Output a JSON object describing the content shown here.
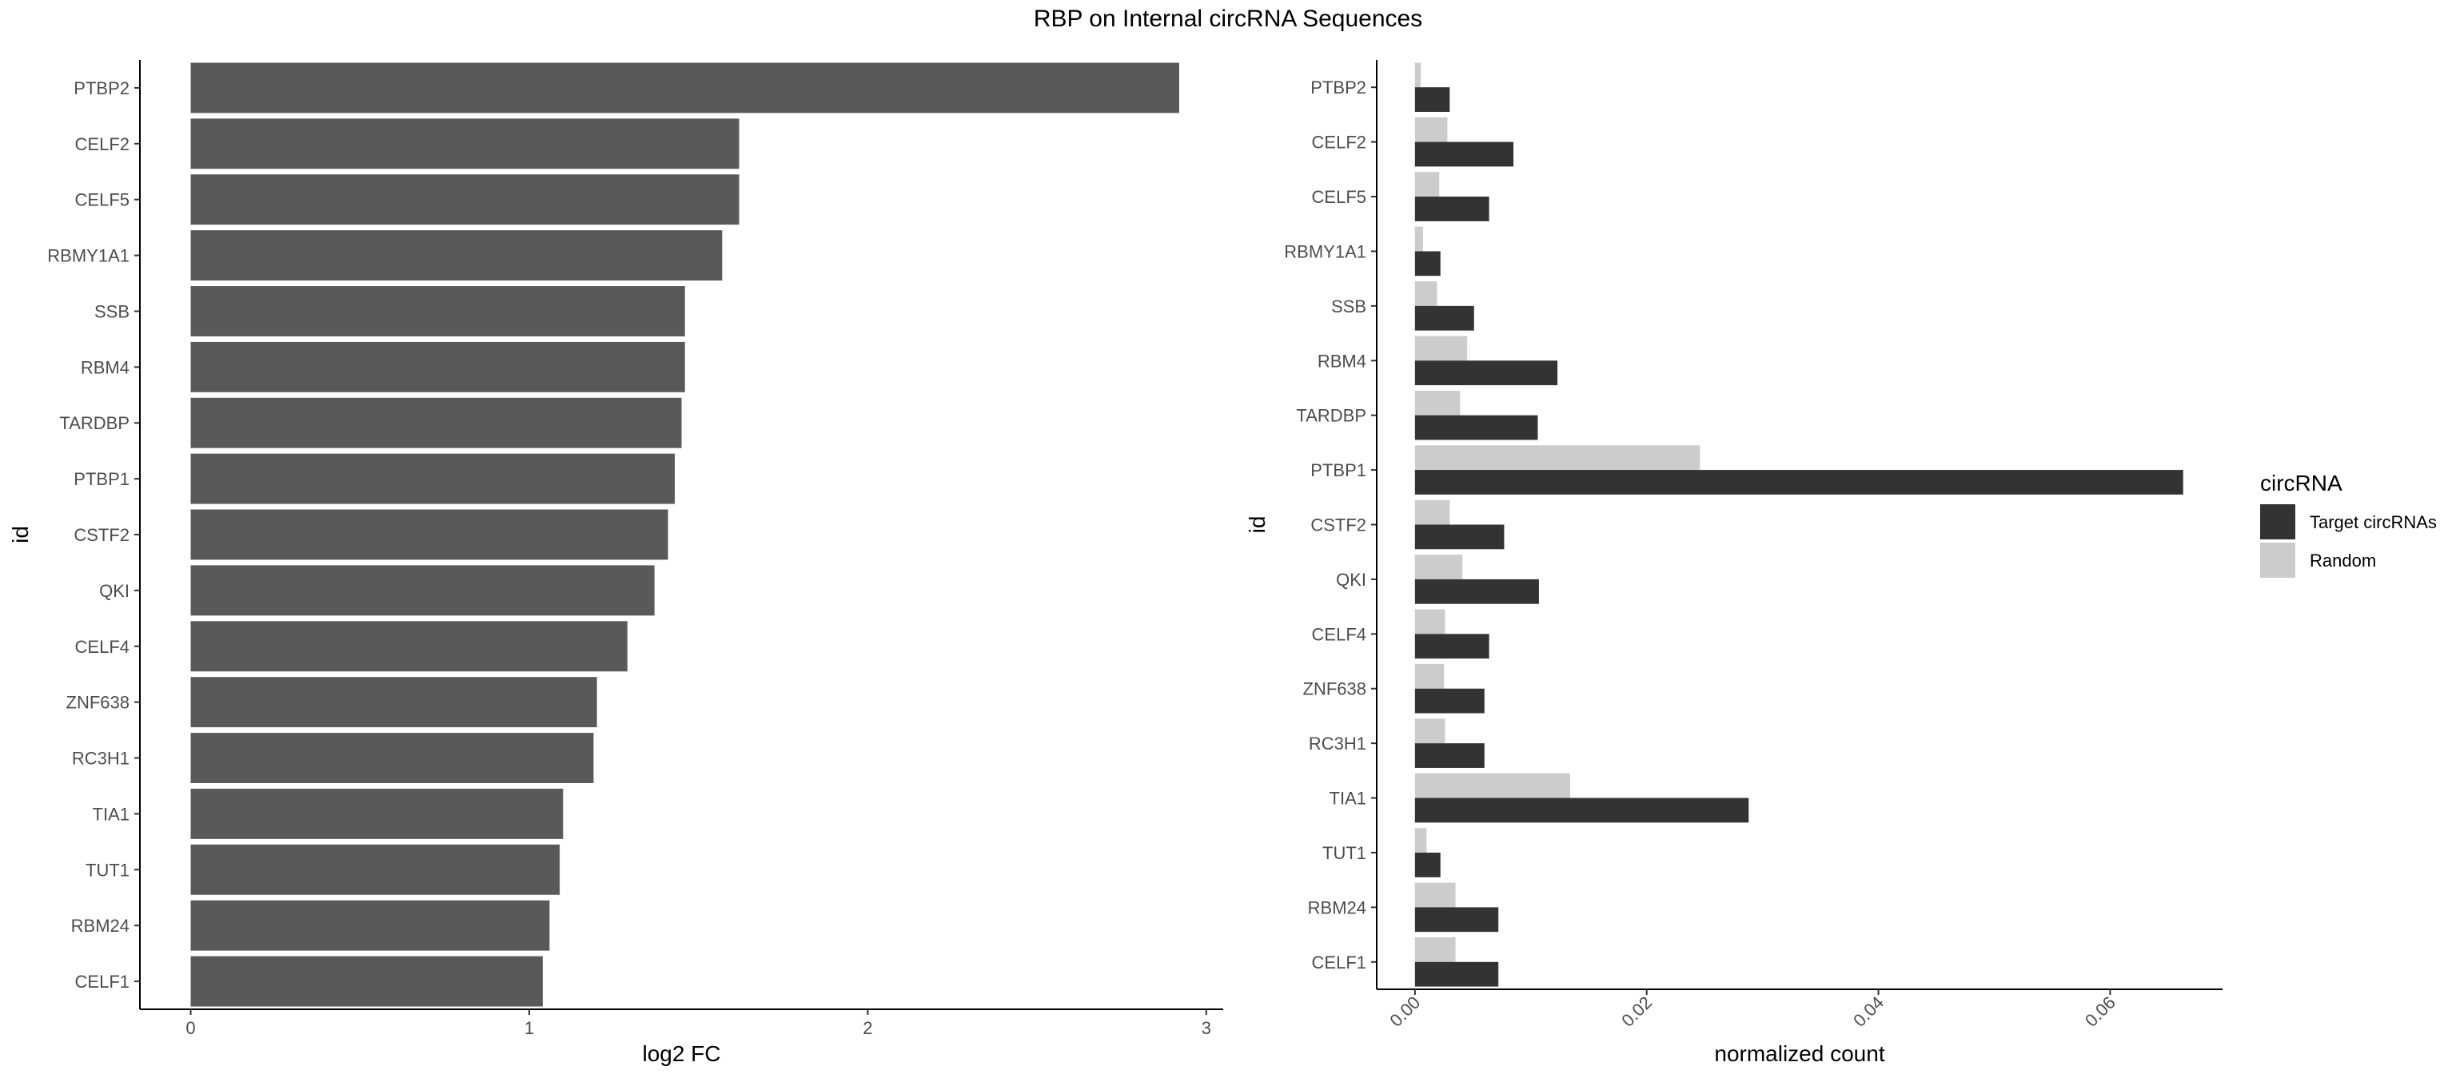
{
  "title": "RBP on Internal circRNA Sequences",
  "chart_data": [
    {
      "type": "bar",
      "orientation": "horizontal",
      "categories": [
        "PTBP2",
        "CELF2",
        "CELF5",
        "RBMY1A1",
        "SSB",
        "RBM4",
        "TARDBP",
        "PTBP1",
        "CSTF2",
        "QKI",
        "CELF4",
        "ZNF638",
        "RC3H1",
        "TIA1",
        "TUT1",
        "RBM24",
        "CELF1"
      ],
      "values": [
        2.92,
        1.62,
        1.62,
        1.57,
        1.46,
        1.46,
        1.45,
        1.43,
        1.41,
        1.37,
        1.29,
        1.2,
        1.19,
        1.1,
        1.09,
        1.06,
        1.04
      ],
      "xlabel": "log2 FC",
      "ylabel": "id",
      "xlim": [
        -0.15,
        3.05
      ],
      "xticks": [
        "0",
        "1",
        "2",
        "3"
      ],
      "bar_color": "#595959",
      "grid": false
    },
    {
      "type": "bar",
      "orientation": "horizontal",
      "grouped": true,
      "categories": [
        "PTBP2",
        "CELF2",
        "CELF5",
        "RBMY1A1",
        "SSB",
        "RBM4",
        "TARDBP",
        "PTBP1",
        "CSTF2",
        "QKI",
        "CELF4",
        "ZNF638",
        "RC3H1",
        "TIA1",
        "TUT1",
        "RBM24",
        "CELF1"
      ],
      "series": [
        {
          "name": "Target circRNAs",
          "color": "#333333",
          "values": [
            0.003,
            0.0085,
            0.0064,
            0.0022,
            0.0051,
            0.0123,
            0.0106,
            0.0663,
            0.0077,
            0.0107,
            0.0064,
            0.006,
            0.006,
            0.0288,
            0.0022,
            0.0072,
            0.0072
          ]
        },
        {
          "name": "Random",
          "color": "#cccccc",
          "values": [
            0.0005,
            0.0028,
            0.0021,
            0.0007,
            0.0019,
            0.0045,
            0.0039,
            0.0246,
            0.003,
            0.0041,
            0.0026,
            0.0025,
            0.0026,
            0.0134,
            0.001,
            0.0035,
            0.0035
          ]
        }
      ],
      "xlabel": "normalized count",
      "ylabel": "id",
      "xlim": [
        -0.0033,
        0.0697
      ],
      "xticks": [
        "0.00",
        "0.02",
        "0.04",
        "0.06"
      ],
      "legend_title": "circRNA",
      "legend_position": "right",
      "grid": false
    }
  ]
}
